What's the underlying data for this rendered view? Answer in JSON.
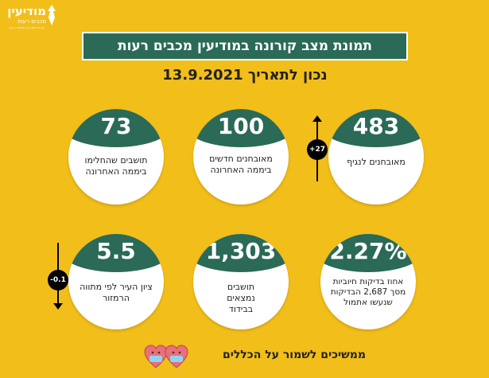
{
  "logo": {
    "line1": "מודיעין",
    "line2": "מכבים רעות",
    "line3": "עיריית מודיעין מכבים רעות"
  },
  "title": "תמונת מצב קורונה במודיעין מכבים רעות",
  "date_label": "נכון לתאריך 13.9.2021",
  "cards": [
    {
      "value": "483",
      "label": "מאובחנים לנגיף",
      "change": "+27",
      "change_dir": "up"
    },
    {
      "value": "100",
      "label": "מאובחנים חדשים ביממה האחרונה"
    },
    {
      "value": "73",
      "label": "תושבים שהחלימו ביממה האחרונה"
    },
    {
      "value": "2.27%",
      "label": "אחוז בדיקות חיוביות מסך 2,687 הבדיקות שנעשו אתמול"
    },
    {
      "value": "1,303",
      "label": "תושבים נמצאים בבידוד"
    },
    {
      "value": "5.5",
      "label": "ציון העיר לפי מתווה הרמזור",
      "change": "-0.1",
      "change_dir": "down"
    }
  ],
  "footer": "ממשיכים לשמור על הכללים",
  "colors": {
    "background": "#F2BE1A",
    "accent": "#2A6A57"
  }
}
